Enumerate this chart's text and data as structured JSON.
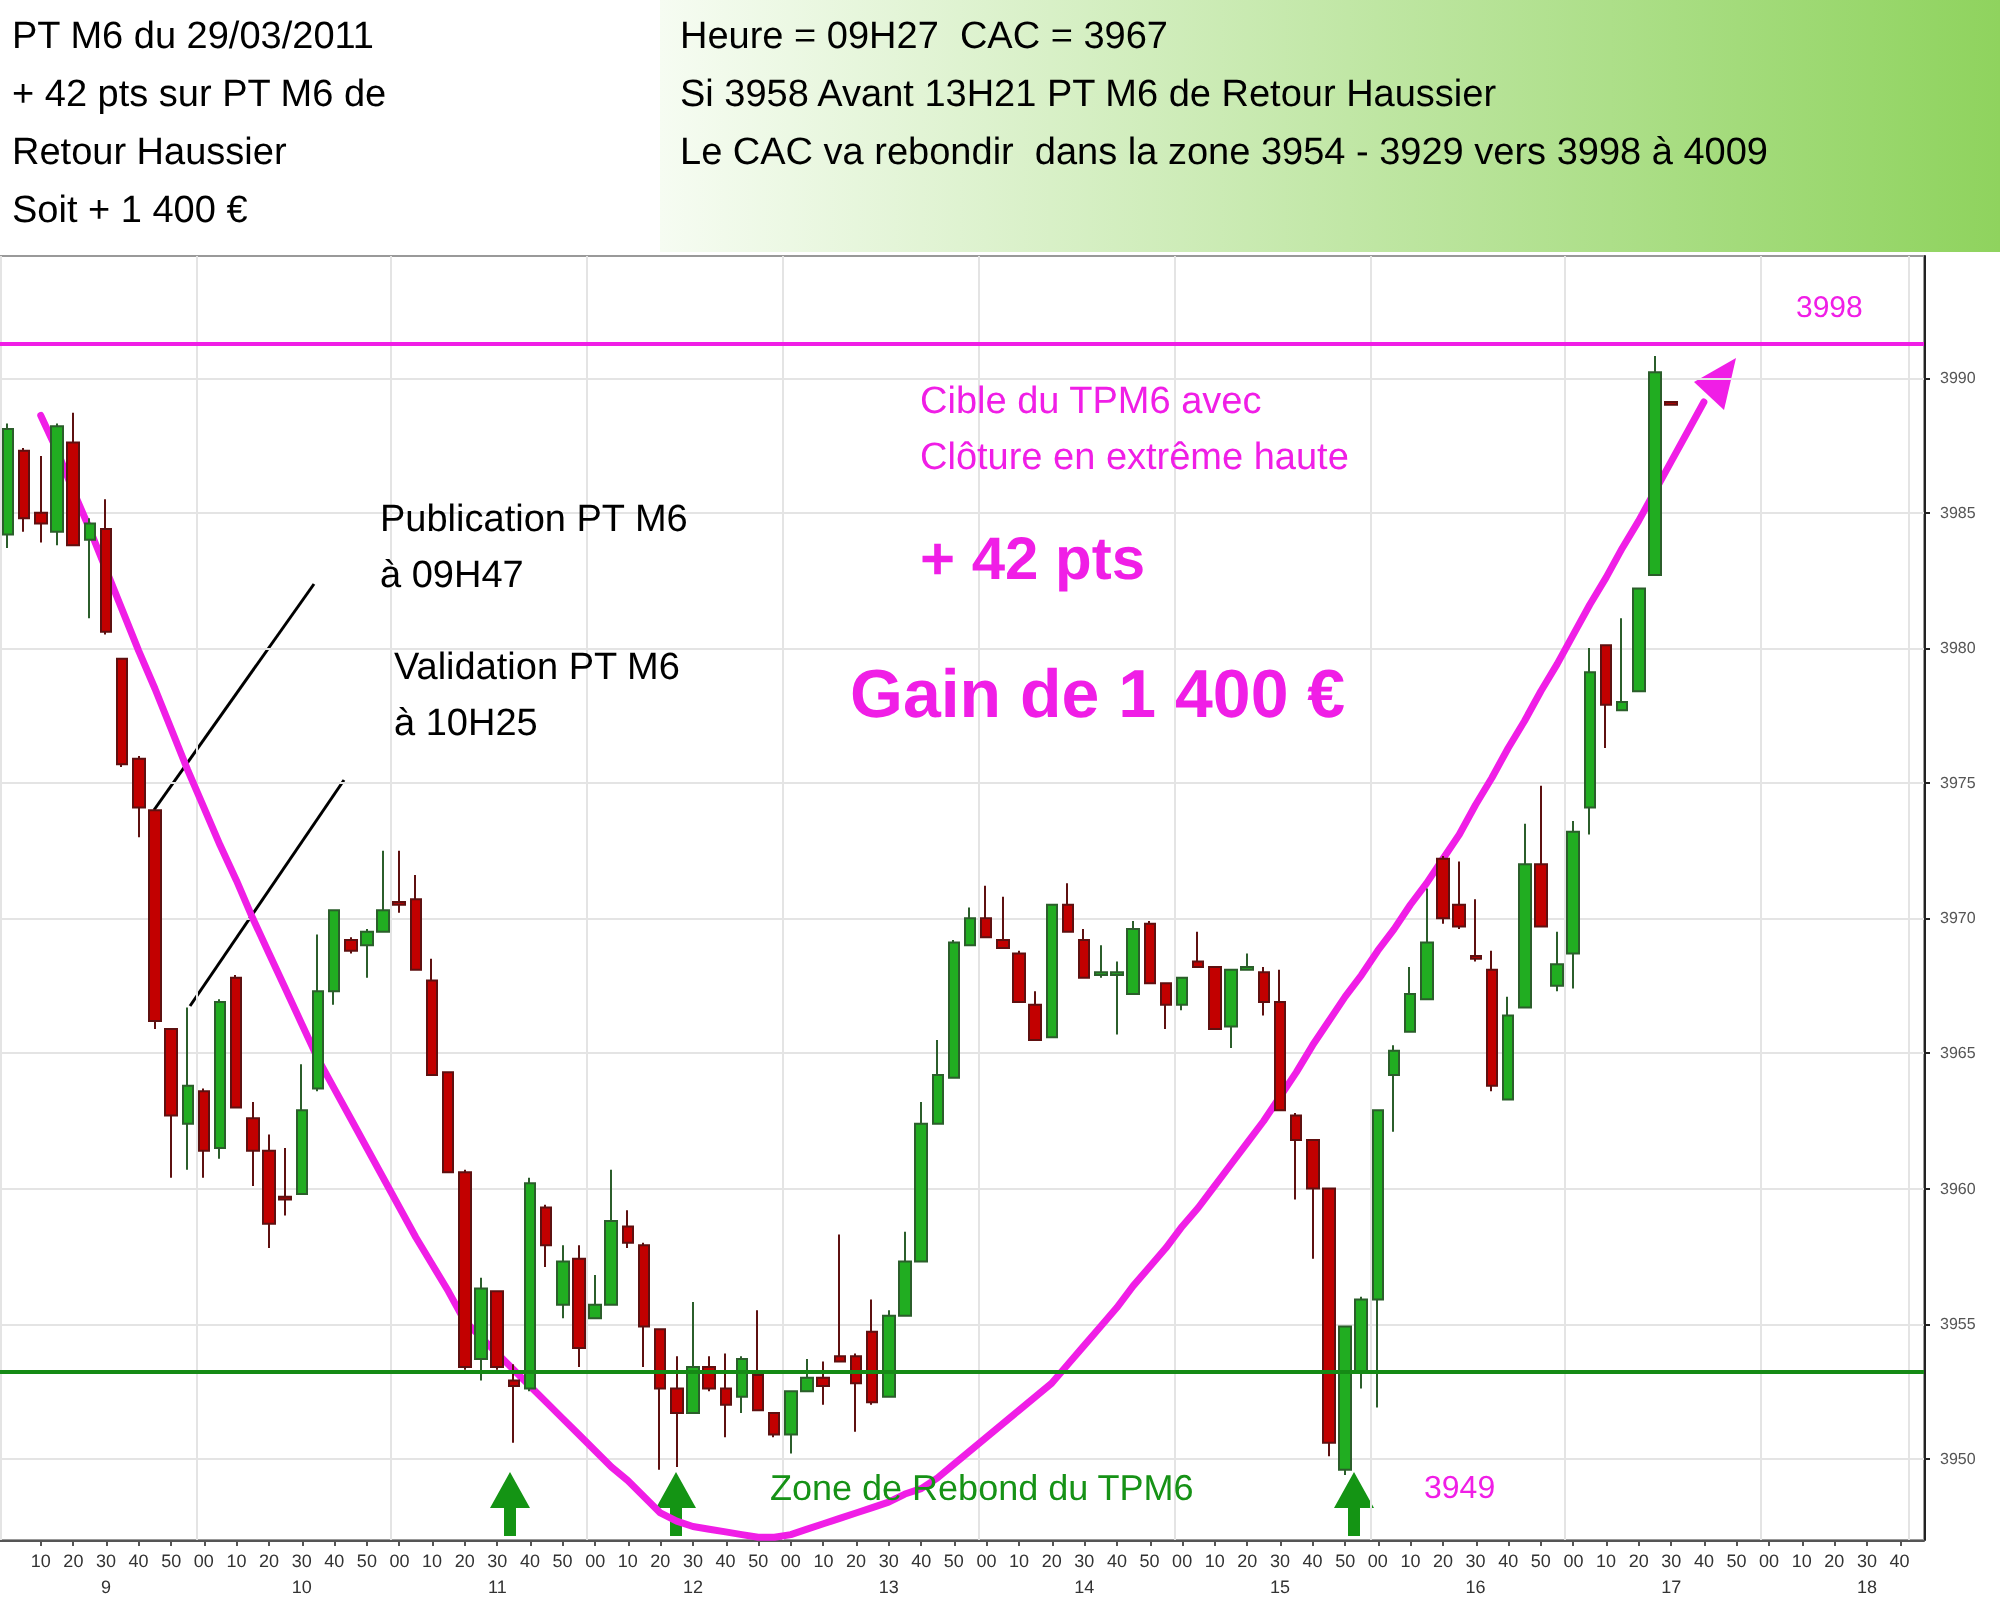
{
  "chart_data": {
    "type": "candlestick",
    "title": "PT M6 du 29/03/2011\n+ 42 pts sur PT M6 de\nRetour Haussier\nSoit + 1 400 €",
    "subtitle": "Heure = 09H27  CAC = 3967\nSi 3958 Avant 13H21 PT M6 de Retour Haussier\nLe CAC va rebondir  dans la zone 3954 - 3929 vers 3998 à 4009",
    "annotations": [
      "Publication PT M6\nà 09H47",
      "Validation PT M6\nà 10H25",
      "Cible du TPM6 avec\nClôture en extrême haute",
      "+ 42 pts",
      "Gain de 1 400 €",
      "Zone de Rebond du TPM6",
      "3949",
      "3998"
    ],
    "categories": [
      null,
      null,
      "10",
      null,
      "20",
      null,
      "30\n9",
      null,
      "40",
      null,
      "50",
      null,
      "00",
      null,
      "10",
      null,
      "20",
      null,
      "30\n10",
      null,
      "40",
      null,
      "50",
      null,
      "00",
      null,
      "10",
      null,
      "20",
      null,
      "30\n11",
      null,
      "40",
      null,
      "50",
      null,
      "00",
      null,
      "10",
      null,
      "20",
      null,
      "30\n12",
      null,
      "40",
      null,
      "50",
      null,
      "00",
      null,
      "10",
      null,
      "20",
      null,
      "30\n13",
      null,
      "40",
      null,
      "50",
      null,
      "00",
      null,
      "10",
      null,
      "20",
      null,
      "30\n14",
      null,
      "40",
      null,
      "50",
      null,
      "00",
      null,
      "10",
      null,
      "20",
      null,
      "30\n15",
      null,
      "40",
      null,
      "50",
      null,
      "00",
      null,
      "10",
      null,
      "20",
      null,
      "30\n16",
      null,
      "40",
      null,
      "50",
      null,
      "00",
      null,
      "10",
      null,
      "20",
      null,
      "30\n17",
      null,
      "40",
      null,
      "50",
      null,
      "00",
      null,
      "10",
      null,
      "20",
      null,
      "30\n18",
      null,
      "40",
      null
    ],
    "series": [
      {
        "ohlc": [
          [
            3984.2,
            3988.3,
            3983.7,
            3988.1
          ],
          [
            3987.3,
            3987.4,
            3984.3,
            3984.8
          ],
          [
            3985.0,
            3987.1,
            3983.9,
            3984.6
          ],
          [
            3984.3,
            3988.3,
            3983.8,
            3988.2
          ],
          [
            3987.6,
            3988.7,
            3983.8,
            3983.8
          ],
          [
            3984.0,
            3984.8,
            3981.1,
            3984.6
          ],
          [
            3984.4,
            3985.5,
            3980.5,
            3980.6
          ],
          [
            3979.6,
            3979.6,
            3975.6,
            3975.7
          ],
          [
            3975.9,
            3976.0,
            3973.0,
            3974.1
          ],
          [
            3974.0,
            3974.0,
            3965.9,
            3966.2
          ],
          [
            3965.9,
            3965.9,
            3960.4,
            3962.7
          ],
          [
            3962.4,
            3966.7,
            3960.7,
            3963.8
          ],
          [
            3963.6,
            3963.7,
            3960.4,
            3961.4
          ],
          [
            3961.5,
            3967.0,
            3961.1,
            3966.9
          ],
          [
            3967.8,
            3967.9,
            3963.0,
            3963.0
          ],
          [
            3962.6,
            3963.2,
            3960.1,
            3961.4
          ],
          [
            3961.4,
            3962.0,
            3957.8,
            3958.7
          ],
          [
            3959.7,
            3961.5,
            3959.0,
            3959.6
          ],
          [
            3959.8,
            3964.6,
            3959.8,
            3962.9
          ],
          [
            3963.7,
            3969.4,
            3963.6,
            3967.3
          ],
          [
            3967.3,
            3970.3,
            3966.8,
            3970.3
          ],
          [
            3969.2,
            3969.3,
            3968.7,
            3968.8
          ],
          [
            3969.0,
            3969.6,
            3967.8,
            3969.5
          ],
          [
            3969.5,
            3972.5,
            3969.5,
            3970.3
          ],
          [
            3970.6,
            3972.5,
            3970.2,
            3970.5
          ],
          [
            3970.7,
            3971.6,
            3968.1,
            3968.1
          ],
          [
            3967.7,
            3968.5,
            3964.2,
            3964.2
          ],
          [
            3964.3,
            3964.3,
            3960.6,
            3960.6
          ],
          [
            3960.6,
            3960.7,
            3953.3,
            3953.4
          ],
          [
            3953.7,
            3956.7,
            3952.9,
            3956.3
          ],
          [
            3956.2,
            3956.2,
            3953.3,
            3953.4
          ],
          [
            3952.9,
            3953.5,
            3950.6,
            3952.7
          ],
          [
            3952.6,
            3960.4,
            3952.5,
            3960.2
          ],
          [
            3959.3,
            3959.4,
            3957.1,
            3957.9
          ],
          [
            3955.7,
            3957.9,
            3955.2,
            3957.3
          ],
          [
            3957.4,
            3957.9,
            3953.4,
            3954.1
          ],
          [
            3955.2,
            3956.8,
            3955.2,
            3955.7
          ],
          [
            3955.7,
            3960.7,
            3955.7,
            3958.8
          ],
          [
            3958.6,
            3959.2,
            3957.8,
            3958.0
          ],
          [
            3957.9,
            3958.0,
            3953.4,
            3954.9
          ],
          [
            3954.8,
            3954.8,
            3949.6,
            3952.6
          ],
          [
            3952.6,
            3953.8,
            3949.7,
            3951.7
          ],
          [
            3951.7,
            3955.8,
            3951.7,
            3953.4
          ],
          [
            3953.4,
            3953.8,
            3952.5,
            3952.6
          ],
          [
            3952.6,
            3953.9,
            3950.8,
            3952.0
          ],
          [
            3952.3,
            3953.8,
            3951.7,
            3953.7
          ],
          [
            3953.1,
            3955.5,
            3951.8,
            3951.8
          ],
          [
            3951.7,
            3951.7,
            3950.8,
            3950.9
          ],
          [
            3950.9,
            3952.5,
            3950.2,
            3952.5
          ],
          [
            3952.5,
            3953.7,
            3952.5,
            3953.0
          ],
          [
            3953.0,
            3953.6,
            3952.0,
            3952.7
          ],
          [
            3953.8,
            3958.3,
            3953.6,
            3953.6
          ],
          [
            3953.8,
            3953.9,
            3951.0,
            3952.8
          ],
          [
            3954.7,
            3955.9,
            3952.0,
            3952.1
          ],
          [
            3952.3,
            3955.5,
            3952.3,
            3955.3
          ],
          [
            3955.3,
            3958.4,
            3955.3,
            3957.3
          ],
          [
            3957.3,
            3963.2,
            3957.3,
            3962.4
          ],
          [
            3962.4,
            3965.5,
            3962.4,
            3964.2
          ],
          [
            3964.1,
            3969.2,
            3964.1,
            3969.1
          ],
          [
            3969.0,
            3970.4,
            3969.0,
            3970.0
          ],
          [
            3970.0,
            3971.2,
            3969.3,
            3969.3
          ],
          [
            3969.2,
            3970.8,
            3968.9,
            3968.9
          ],
          [
            3968.7,
            3968.8,
            3966.9,
            3966.9
          ],
          [
            3966.8,
            3967.3,
            3965.5,
            3965.5
          ],
          [
            3965.6,
            3970.5,
            3965.6,
            3970.5
          ],
          [
            3970.5,
            3971.3,
            3969.5,
            3969.5
          ],
          [
            3969.2,
            3969.6,
            3967.8,
            3967.8
          ],
          [
            3967.9,
            3969.0,
            3967.8,
            3968.0
          ],
          [
            3967.9,
            3968.4,
            3965.7,
            3968.0
          ],
          [
            3967.2,
            3969.9,
            3967.2,
            3969.6
          ],
          [
            3969.8,
            3969.9,
            3967.6,
            3967.6
          ],
          [
            3967.6,
            3967.6,
            3965.9,
            3966.8
          ],
          [
            3966.8,
            3967.8,
            3966.6,
            3967.8
          ],
          [
            3968.4,
            3969.5,
            3968.2,
            3968.2
          ],
          [
            3968.2,
            3968.2,
            3965.9,
            3965.9
          ],
          [
            3966.0,
            3968.1,
            3965.2,
            3968.1
          ],
          [
            3968.1,
            3968.7,
            3968.1,
            3968.2
          ],
          [
            3968.0,
            3968.2,
            3966.4,
            3966.9
          ],
          [
            3966.9,
            3968.1,
            3962.9,
            3962.9
          ],
          [
            3962.7,
            3962.8,
            3959.6,
            3961.8
          ],
          [
            3961.8,
            3961.8,
            3957.4,
            3960.0
          ],
          [
            3960.0,
            3960.0,
            3950.1,
            3950.6
          ],
          [
            3949.6,
            3954.9,
            3949.4,
            3954.9
          ],
          [
            3953.2,
            3956.0,
            3952.6,
            3955.9
          ],
          [
            3955.9,
            3962.9,
            3951.9,
            3962.9
          ],
          [
            3964.2,
            3965.3,
            3962.1,
            3965.1
          ],
          [
            3965.8,
            3968.2,
            3965.8,
            3967.2
          ],
          [
            3967.0,
            3971.1,
            3967.0,
            3969.1
          ],
          [
            3972.2,
            3972.3,
            3969.8,
            3970.0
          ],
          [
            3970.5,
            3972.1,
            3969.6,
            3969.7
          ],
          [
            3968.6,
            3970.7,
            3968.4,
            3968.5
          ],
          [
            3968.1,
            3968.8,
            3963.6,
            3963.8
          ],
          [
            3963.3,
            3967.1,
            3963.3,
            3966.4
          ],
          [
            3966.7,
            3973.5,
            3966.7,
            3972.0
          ],
          [
            3972.0,
            3974.9,
            3969.7,
            3969.7
          ],
          [
            3967.5,
            3969.5,
            3967.3,
            3968.3
          ],
          [
            3968.7,
            3973.6,
            3967.4,
            3973.2
          ],
          [
            3974.1,
            3980.0,
            3973.1,
            3979.1
          ],
          [
            3980.1,
            3980.1,
            3976.3,
            3977.9
          ],
          [
            3977.7,
            3981.1,
            3977.7,
            3978.0
          ],
          [
            3978.4,
            3982.2,
            3978.4,
            3982.2
          ],
          [
            3982.7,
            3990.8,
            3982.7,
            3990.2
          ],
          [
            3989.1,
            3989.1,
            3989.0,
            3989.0
          ],
          null,
          null,
          null,
          null,
          null,
          null,
          null,
          null,
          null,
          null,
          null,
          null,
          null,
          null,
          null
        ]
      },
      {
        "type": "line",
        "color": "#f01ee6",
        "marker": "none",
        "values": [
          null,
          null,
          3988.6,
          3987.3,
          3985.8,
          3984.4,
          3982.9,
          3981.4,
          3979.9,
          3978.5,
          3977.0,
          3975.5,
          3974.1,
          3972.7,
          3971.4,
          3970.0,
          3968.7,
          3967.4,
          3966.1,
          3964.8,
          3963.7,
          3962.6,
          3961.5,
          3960.4,
          3959.3,
          3958.2,
          3957.2,
          3956.2,
          3955.1,
          3954.5,
          3953.9,
          3953.3,
          3952.7,
          3952.1,
          3951.5,
          3950.9,
          3950.3,
          3949.7,
          3949.2,
          3948.6,
          3948.0,
          3947.7,
          3947.5,
          3947.4,
          3947.3,
          3947.2,
          3947.1,
          3947.1,
          3947.2,
          3947.4,
          3947.6,
          3947.8,
          3948.0,
          3948.2,
          3948.4,
          3948.7,
          3948.9,
          3949.3,
          3949.8,
          3950.3,
          3950.8,
          3951.3,
          3951.8,
          3952.3,
          3952.8,
          3953.5,
          3954.2,
          3954.9,
          3955.6,
          3956.4,
          3957.1,
          3957.8,
          3958.6,
          3959.3,
          3960.1,
          3960.9,
          3961.7,
          3962.5,
          3963.4,
          3964.3,
          3965.3,
          3966.2,
          3967.1,
          3967.9,
          3968.8,
          3969.6,
          3970.5,
          3971.3,
          3972.2,
          3973.1,
          3974.2,
          3975.2,
          3976.3,
          3977.3,
          3978.4,
          3979.4,
          3980.5,
          3981.6,
          3982.6,
          3983.7,
          3984.7,
          3985.8,
          3986.9,
          3988.0,
          3989.1,
          null,
          null,
          null,
          null,
          null,
          null,
          null,
          null,
          null,
          null,
          null,
          null,
          null
        ]
      }
    ],
    "ylim": [
      3947,
      3994.5
    ],
    "yticks": [
      3950,
      3955,
      3960,
      3965,
      3970,
      3975,
      3980,
      3985,
      3990
    ],
    "ref_lines": [
      {
        "axis": "y",
        "value": 3953.2,
        "color": "#158a15"
      },
      {
        "axis": "y",
        "value": 3991.3,
        "color": "#f01ee6"
      }
    ],
    "grid": true
  }
}
